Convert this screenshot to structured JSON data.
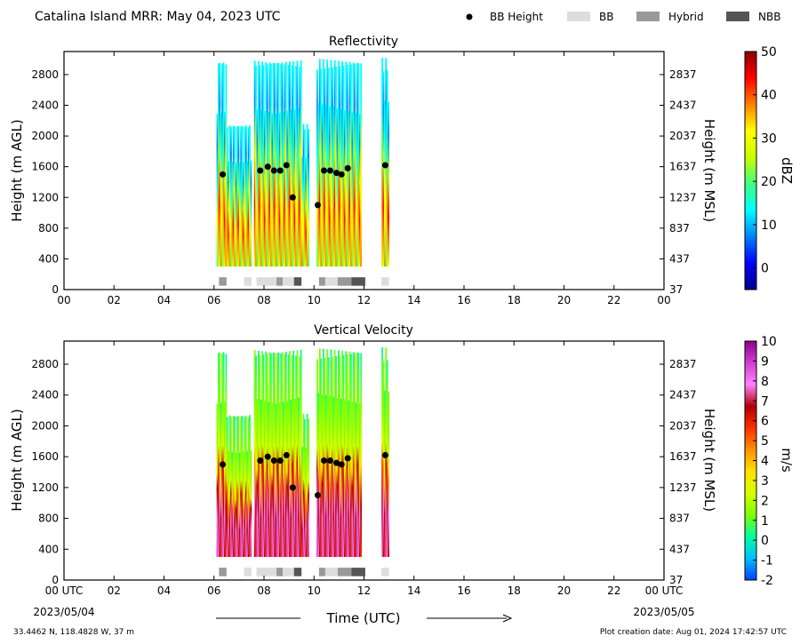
{
  "header": {
    "title": "Catalina Island MRR:  May 04, 2023 UTC",
    "legend": [
      {
        "label": "BB Height",
        "kind": "dot",
        "color": "#000000"
      },
      {
        "label": "BB",
        "kind": "patch",
        "color": "#dddddd"
      },
      {
        "label": "Hybrid",
        "kind": "patch",
        "color": "#999999"
      },
      {
        "label": "NBB",
        "kind": "patch",
        "color": "#555555"
      }
    ]
  },
  "footer": {
    "coords": "33.4462 N, 118.4828 W, 37 m",
    "created": "Plot creation date: Aug 01, 2024 17:42:57 UTC",
    "xlabel": "Time (UTC)",
    "date_start": "2023/05/04",
    "date_end": "2023/05/05"
  },
  "chart_data": [
    {
      "type": "heatmap",
      "title": "Reflectivity",
      "ylabel": "Height (m AGL)",
      "ylabel_right": "Height (m MSL)",
      "xlabel": "",
      "xlim": [
        0,
        24
      ],
      "ylim": [
        0,
        3100
      ],
      "x_ticks": [
        "00",
        "02",
        "04",
        "06",
        "08",
        "10",
        "12",
        "14",
        "16",
        "18",
        "20",
        "22",
        "00"
      ],
      "y_ticks": [
        0,
        400,
        800,
        1200,
        1600,
        2000,
        2400,
        2800
      ],
      "y_ticks_right": [
        "37",
        "437",
        "837",
        "1237",
        "1637",
        "2037",
        "2437",
        "2837"
      ],
      "colorbar": {
        "label": "dBZ",
        "range": [
          -5,
          50
        ],
        "ticks": [
          "50",
          "40",
          "30",
          "20",
          "10",
          "0"
        ],
        "tick_values": [
          50,
          40,
          30,
          20,
          10,
          0
        ],
        "colors": [
          "#00008b",
          "#0000ff",
          "#0080ff",
          "#00ffff",
          "#40ff80",
          "#c8ff00",
          "#ffff00",
          "#ff8000",
          "#ff0000",
          "#8b0000"
        ]
      },
      "bb_height": [
        {
          "hour": 6.35,
          "height": 1500
        },
        {
          "hour": 7.85,
          "height": 1550
        },
        {
          "hour": 8.15,
          "height": 1600
        },
        {
          "hour": 8.4,
          "height": 1550
        },
        {
          "hour": 8.65,
          "height": 1550
        },
        {
          "hour": 8.9,
          "height": 1620
        },
        {
          "hour": 9.15,
          "height": 1200
        },
        {
          "hour": 10.15,
          "height": 1100
        },
        {
          "hour": 10.4,
          "height": 1550
        },
        {
          "hour": 10.65,
          "height": 1550
        },
        {
          "hour": 10.9,
          "height": 1520
        },
        {
          "hour": 11.1,
          "height": 1500
        },
        {
          "hour": 11.35,
          "height": 1580
        },
        {
          "hour": 12.85,
          "height": 1620
        }
      ],
      "bb_type": [
        {
          "start": 6.2,
          "end": 6.5,
          "type": "Hybrid"
        },
        {
          "start": 7.2,
          "end": 7.5,
          "type": "BB"
        },
        {
          "start": 7.7,
          "end": 8.5,
          "type": "BB"
        },
        {
          "start": 8.5,
          "end": 8.75,
          "type": "Hybrid"
        },
        {
          "start": 8.75,
          "end": 9.2,
          "type": "BB"
        },
        {
          "start": 9.2,
          "end": 9.5,
          "type": "NBB"
        },
        {
          "start": 10.2,
          "end": 10.45,
          "type": "Hybrid"
        },
        {
          "start": 10.45,
          "end": 10.95,
          "type": "BB"
        },
        {
          "start": 10.95,
          "end": 11.5,
          "type": "Hybrid"
        },
        {
          "start": 11.5,
          "end": 12.05,
          "type": "NBB"
        },
        {
          "start": 12.7,
          "end": 13.0,
          "type": "BB"
        }
      ],
      "data_segments": [
        {
          "start": 6.1,
          "end": 6.5,
          "top": 3050,
          "mean": 14
        },
        {
          "start": 6.5,
          "end": 7.5,
          "top": 2200,
          "mean": 6
        },
        {
          "start": 7.6,
          "end": 9.5,
          "top": 3050,
          "mean": 18
        },
        {
          "start": 9.5,
          "end": 9.8,
          "top": 2200,
          "mean": 16
        },
        {
          "start": 10.1,
          "end": 11.9,
          "top": 3050,
          "mean": 26
        },
        {
          "start": 12.7,
          "end": 13.0,
          "top": 3050,
          "mean": 22
        }
      ]
    },
    {
      "type": "heatmap",
      "title": "Vertical Velocity",
      "ylabel": "Height (m AGL)",
      "ylabel_right": "Height (m MSL)",
      "xlabel": "Time (UTC)",
      "xlim": [
        0,
        24
      ],
      "ylim": [
        0,
        3100
      ],
      "x_ticks": [
        "00 UTC",
        "02",
        "04",
        "06",
        "08",
        "10",
        "12",
        "14",
        "16",
        "18",
        "20",
        "22",
        "00 UTC"
      ],
      "y_ticks": [
        0,
        400,
        800,
        1200,
        1600,
        2000,
        2400,
        2800
      ],
      "y_ticks_right": [
        "37",
        "437",
        "837",
        "1237",
        "1637",
        "2037",
        "2437",
        "2837"
      ],
      "colorbar": {
        "label": "m/s",
        "range": [
          -2,
          10
        ],
        "ticks": [
          "10",
          "9",
          "8",
          "7",
          "6",
          "5",
          "4",
          "3",
          "2",
          "1",
          "0",
          "-1",
          "-2"
        ],
        "tick_values": [
          10,
          9,
          8,
          7,
          6,
          5,
          4,
          3,
          2,
          1,
          0,
          -1,
          -2
        ],
        "colors": [
          "#0040ff",
          "#00c0ff",
          "#00ffa0",
          "#80ff00",
          "#d8ff00",
          "#ffe000",
          "#ff9000",
          "#ff3000",
          "#b00000",
          "#ff80ff",
          "#d040d0",
          "#900090"
        ]
      },
      "bb_height": [
        {
          "hour": 6.35,
          "height": 1500
        },
        {
          "hour": 7.85,
          "height": 1550
        },
        {
          "hour": 8.15,
          "height": 1600
        },
        {
          "hour": 8.4,
          "height": 1550
        },
        {
          "hour": 8.65,
          "height": 1550
        },
        {
          "hour": 8.9,
          "height": 1620
        },
        {
          "hour": 9.15,
          "height": 1200
        },
        {
          "hour": 10.15,
          "height": 1100
        },
        {
          "hour": 10.4,
          "height": 1550
        },
        {
          "hour": 10.65,
          "height": 1550
        },
        {
          "hour": 10.9,
          "height": 1520
        },
        {
          "hour": 11.1,
          "height": 1500
        },
        {
          "hour": 11.35,
          "height": 1580
        },
        {
          "hour": 12.85,
          "height": 1620
        }
      ],
      "bb_type": [
        {
          "start": 6.2,
          "end": 6.5,
          "type": "Hybrid"
        },
        {
          "start": 7.2,
          "end": 7.5,
          "type": "BB"
        },
        {
          "start": 7.7,
          "end": 8.5,
          "type": "BB"
        },
        {
          "start": 8.5,
          "end": 8.75,
          "type": "Hybrid"
        },
        {
          "start": 8.75,
          "end": 9.2,
          "type": "BB"
        },
        {
          "start": 9.2,
          "end": 9.5,
          "type": "NBB"
        },
        {
          "start": 10.2,
          "end": 10.45,
          "type": "Hybrid"
        },
        {
          "start": 10.45,
          "end": 10.95,
          "type": "BB"
        },
        {
          "start": 10.95,
          "end": 11.5,
          "type": "Hybrid"
        },
        {
          "start": 11.5,
          "end": 12.05,
          "type": "NBB"
        },
        {
          "start": 12.7,
          "end": 13.0,
          "type": "BB"
        }
      ],
      "data_segments": [
        {
          "start": 6.1,
          "end": 6.5,
          "top": 3050,
          "mean": 4
        },
        {
          "start": 6.5,
          "end": 7.5,
          "top": 2200,
          "mean": 2
        },
        {
          "start": 7.6,
          "end": 9.5,
          "top": 3050,
          "mean": 4
        },
        {
          "start": 9.5,
          "end": 9.8,
          "top": 2200,
          "mean": 2
        },
        {
          "start": 10.1,
          "end": 11.9,
          "top": 3050,
          "mean": 4
        },
        {
          "start": 12.7,
          "end": 13.0,
          "top": 3050,
          "mean": 4
        }
      ]
    }
  ]
}
